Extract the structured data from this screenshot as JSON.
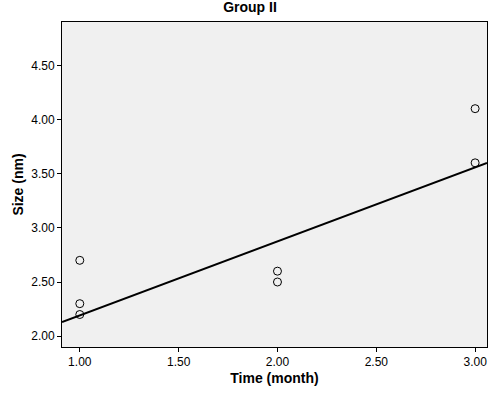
{
  "chart_data": {
    "type": "scatter",
    "title": "Group II",
    "x_label": "Time (month)",
    "y_label": "Size (nm)",
    "x": [
      1,
      1,
      1,
      2,
      2,
      3,
      3
    ],
    "values": [
      2.7,
      2.3,
      2.2,
      2.6,
      2.5,
      4.1,
      3.6
    ],
    "marker": "circle-open",
    "color": "#000000",
    "fit_line": {
      "x": [
        0.91,
        3.06
      ],
      "y": [
        2.13,
        3.6
      ],
      "color": "#000000",
      "line_style": "solid"
    },
    "xlim": [
      0.91,
      3.06
    ],
    "ylim": [
      1.9,
      4.9
    ],
    "xticks": [
      {
        "value": 1,
        "label": "1.00"
      },
      {
        "value": 1.5,
        "label": "1.50"
      },
      {
        "value": 2,
        "label": "2.00"
      },
      {
        "value": 2.5,
        "label": "2.50"
      },
      {
        "value": 3,
        "label": "3.00"
      }
    ],
    "yticks": [
      {
        "value": 2,
        "label": "2.00"
      },
      {
        "value": 2.5,
        "label": "2.50"
      },
      {
        "value": 3,
        "label": "3.00"
      },
      {
        "value": 3.5,
        "label": "3.50"
      },
      {
        "value": 4,
        "label": "4.00"
      },
      {
        "value": 4.5,
        "label": "4.50"
      }
    ],
    "grid": false
  }
}
